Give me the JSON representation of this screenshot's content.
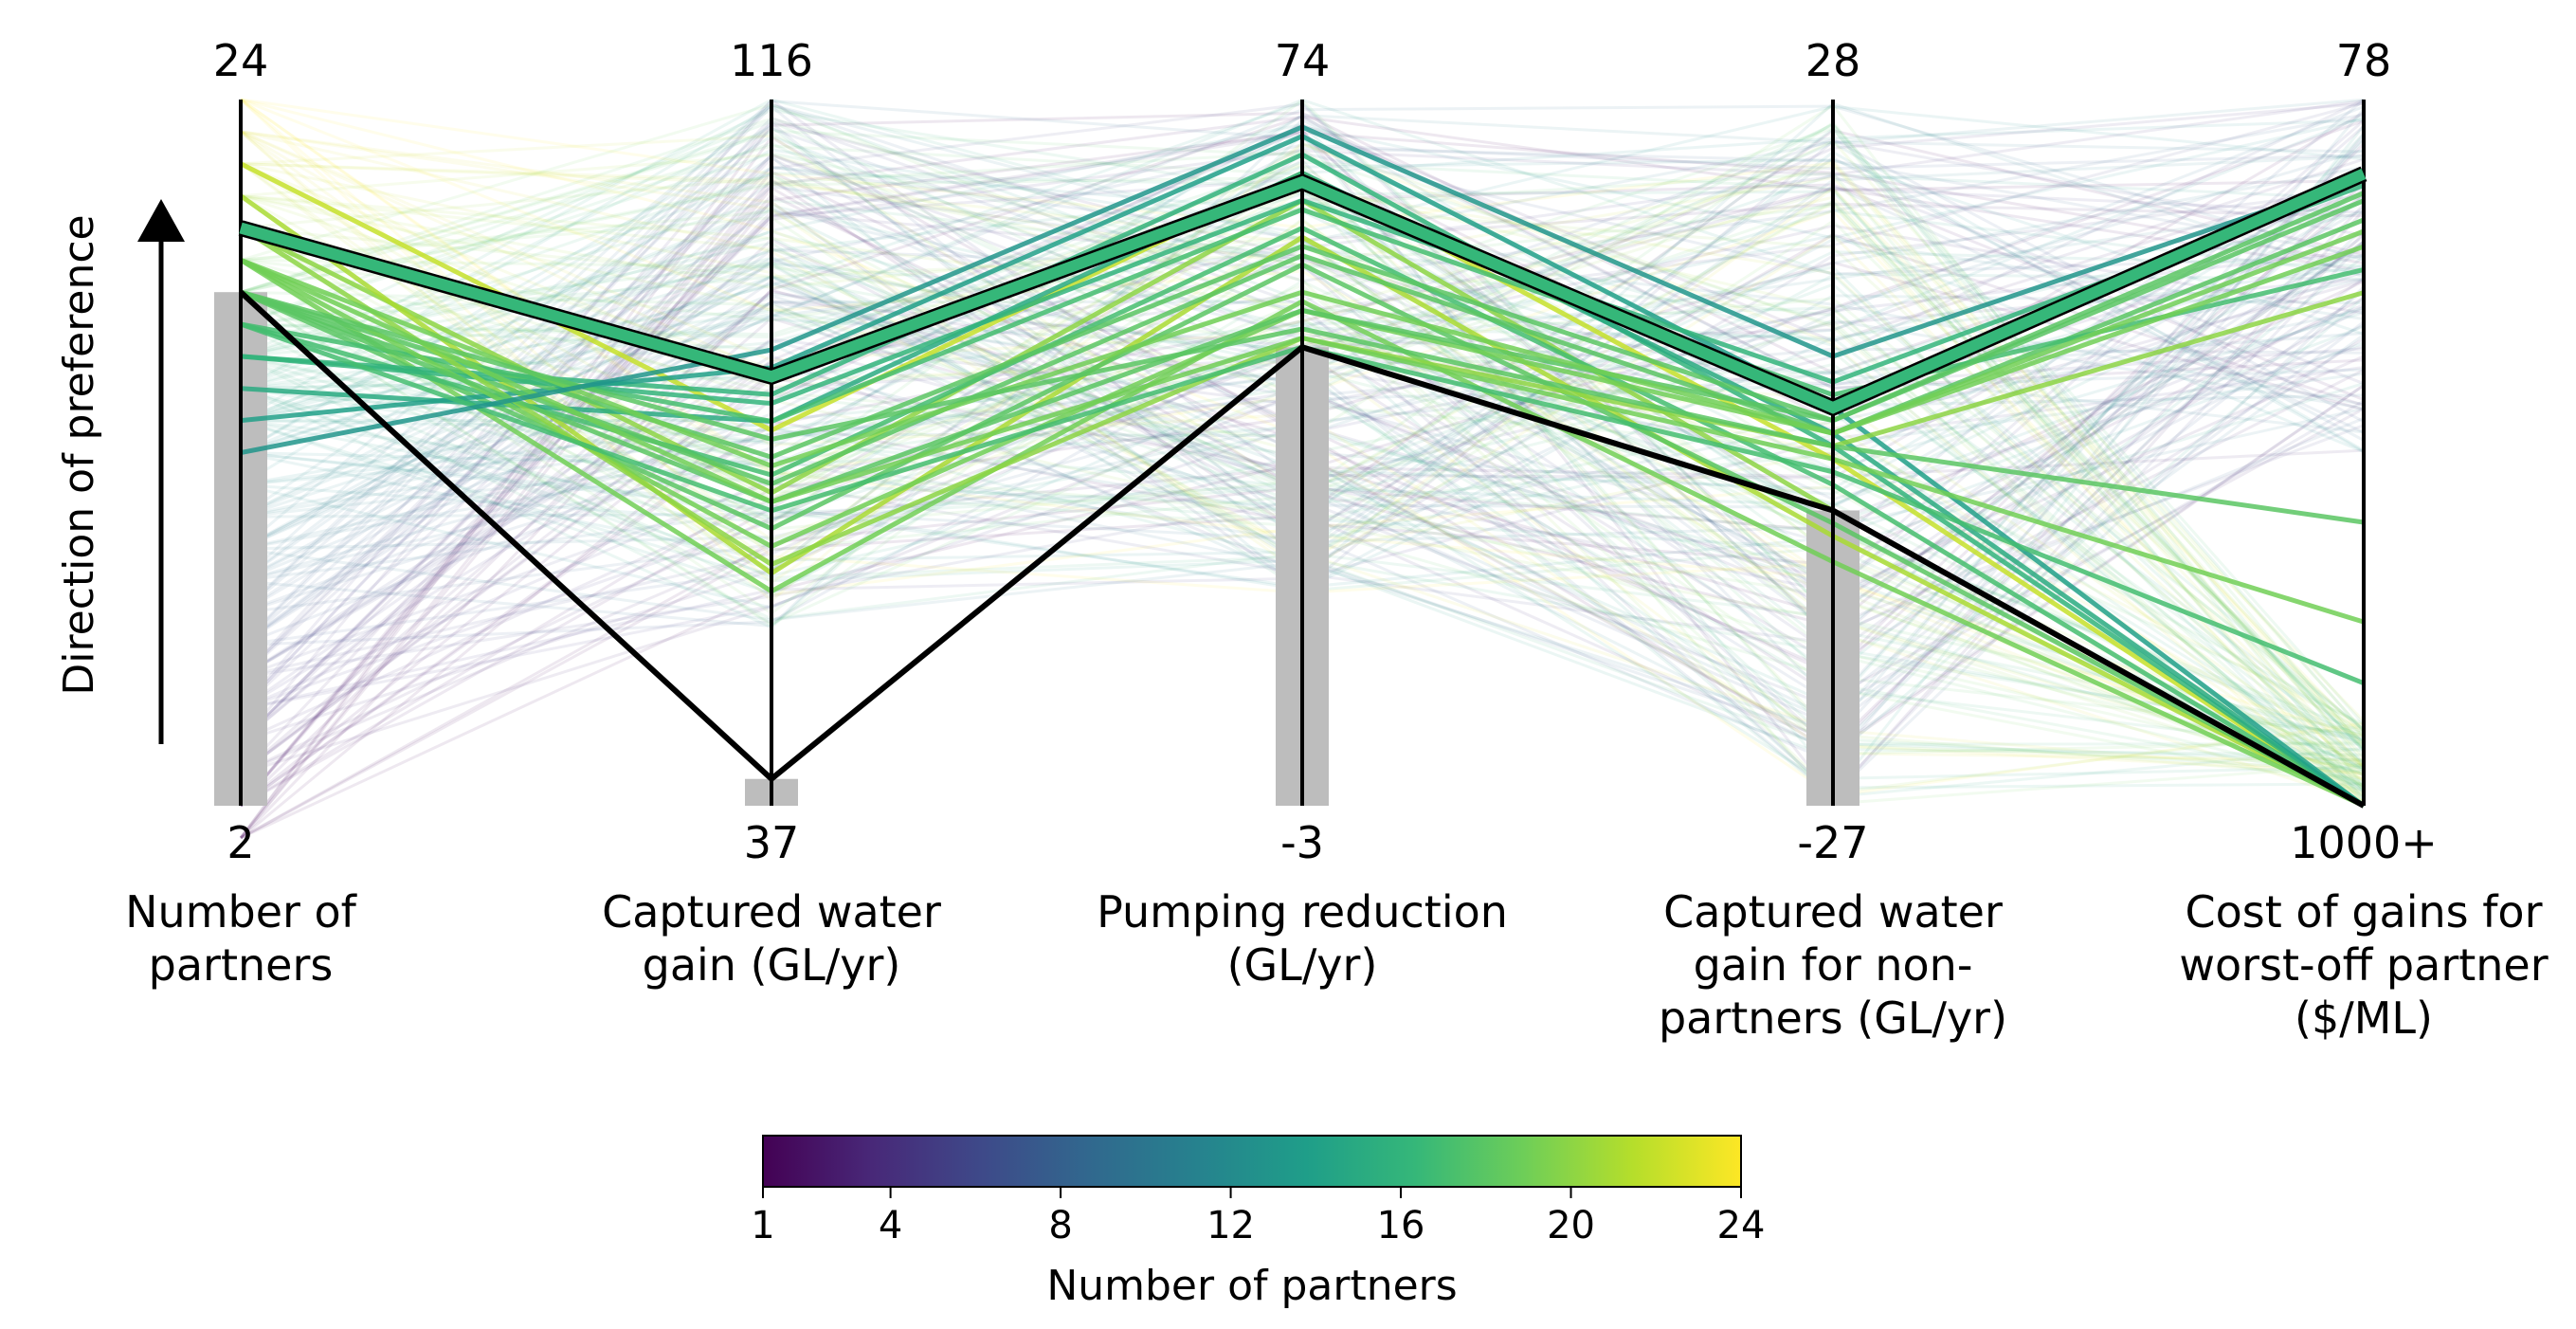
{
  "preference_label": "Direction of preference",
  "axes": [
    {
      "title_lines": [
        "Number of",
        "partners"
      ],
      "top_label": "24",
      "bottom_label": "2",
      "min": 2,
      "max": 24
    },
    {
      "title_lines": [
        "Captured water",
        "gain (GL/yr)"
      ],
      "top_label": "116",
      "bottom_label": "37",
      "min": 37,
      "max": 116
    },
    {
      "title_lines": [
        "Pumping reduction",
        "(GL/yr)"
      ],
      "top_label": "74",
      "bottom_label": "-3",
      "min": -3,
      "max": 74
    },
    {
      "title_lines": [
        "Captured water",
        "gain for non-",
        "partners (GL/yr)"
      ],
      "top_label": "28",
      "bottom_label": "-27",
      "min": -27,
      "max": 28
    },
    {
      "title_lines": [
        "Cost of gains for",
        "worst-off partner",
        "($/ML)"
      ],
      "top_label": "78",
      "bottom_label": "1000+",
      "min": 1000,
      "max": 78
    }
  ],
  "colorbar": {
    "title": "Number of partners",
    "min": 1,
    "max": 24,
    "ticks": [
      "1",
      "4",
      "8",
      "12",
      "16",
      "20",
      "24"
    ],
    "colors": [
      "#440154",
      "#482878",
      "#3e4989",
      "#31688e",
      "#26828e",
      "#1f9e89",
      "#35b779",
      "#6ece58",
      "#b5de2b",
      "#fde725"
    ]
  },
  "chart_data": {
    "type": "parallel-coordinates",
    "color_by": "Number of partners",
    "highlighted_green_solution": {
      "values": [
        20,
        85,
        65,
        4,
        175
      ],
      "color": "#35b779"
    },
    "highlighted_black_solution": {
      "values": [
        18,
        40,
        47,
        -4,
        1000
      ],
      "color": "#000000"
    },
    "shaded_bars": [
      {
        "axis": 0,
        "from": 2,
        "to": 18,
        "color": "#bdbdbd"
      },
      {
        "axis": 1,
        "from": 37,
        "to": 40,
        "color": "#bdbdbd"
      },
      {
        "axis": 2,
        "from": -3,
        "to": 47,
        "color": "#bdbdbd"
      },
      {
        "axis": 3,
        "from": -27,
        "to": -4,
        "color": "#bdbdbd"
      }
    ],
    "solutions": [
      {
        "n": 22,
        "values": [
          22,
          79,
          66,
          0,
          1000
        ]
      },
      {
        "n": 20,
        "values": [
          20,
          72,
          63,
          -4,
          1000
        ]
      },
      {
        "n": 21,
        "values": [
          21,
          63,
          59,
          -6,
          1000
        ]
      },
      {
        "n": 19,
        "values": [
          19,
          61,
          52,
          -8,
          1000
        ]
      },
      {
        "n": 18,
        "values": [
          18,
          68,
          56,
          -5,
          1000
        ]
      },
      {
        "n": 17,
        "values": [
          17,
          74,
          60,
          -2,
          1000
        ]
      },
      {
        "n": 16,
        "values": [
          16,
          83,
          68,
          1,
          1000
        ]
      },
      {
        "n": 15,
        "values": [
          15,
          80,
          66,
          2,
          1000
        ]
      },
      {
        "n": 14,
        "values": [
          14,
          86,
          70,
          4,
          1000
        ]
      },
      {
        "n": 18,
        "values": [
          18,
          76,
          58,
          3,
          200
        ]
      },
      {
        "n": 18,
        "values": [
          18,
          73,
          57,
          2,
          235
        ]
      },
      {
        "n": 16,
        "values": [
          16,
          82,
          63,
          6,
          190
        ]
      },
      {
        "n": 17,
        "values": [
          17,
          80,
          62,
          5,
          300
        ]
      },
      {
        "n": 19,
        "values": [
          19,
          66,
          51,
          2,
          250
        ]
      },
      {
        "n": 20,
        "values": [
          20,
          64,
          48,
          1,
          330
        ]
      },
      {
        "n": 18,
        "values": [
          18,
          71,
          51,
          3,
          210
        ]
      },
      {
        "n": 19,
        "values": [
          19,
          75,
          53,
          2,
          270
        ]
      },
      {
        "n": 18,
        "values": [
          18,
          78,
          49,
          1,
          630
        ]
      },
      {
        "n": 19,
        "values": [
          19,
          71,
          48,
          0,
          760
        ]
      },
      {
        "n": 17,
        "values": [
          17,
          70,
          47,
          -1,
          840
        ]
      },
      {
        "n": 13,
        "values": [
          13,
          88,
          71,
          8,
          180
        ]
      }
    ]
  }
}
